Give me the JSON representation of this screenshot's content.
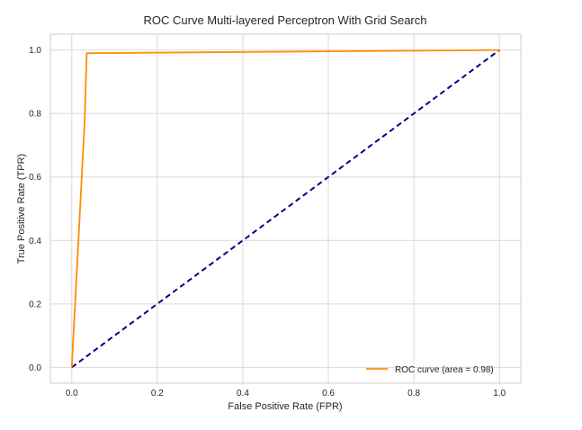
{
  "chart_data": {
    "type": "line",
    "title": "ROC Curve Multi-layered Perceptron With Grid Search",
    "xlabel": "False Positive Rate (FPR)",
    "ylabel": "True Positive Rate (TPR)",
    "xlim": [
      -0.05,
      1.05
    ],
    "ylim": [
      -0.05,
      1.05
    ],
    "xticks": [
      0.0,
      0.2,
      0.4,
      0.6,
      0.8,
      1.0
    ],
    "yticks": [
      0.0,
      0.2,
      0.4,
      0.6,
      0.8,
      1.0
    ],
    "xtick_labels": [
      "0.0",
      "0.2",
      "0.4",
      "0.6",
      "0.8",
      "1.0"
    ],
    "ytick_labels": [
      "0.0",
      "0.2",
      "0.4",
      "0.6",
      "0.8",
      "1.0"
    ],
    "grid": true,
    "legend_position": "lower-right",
    "series": [
      {
        "name": "ROC curve (area = 0.98)",
        "color": "#ff8c00",
        "style": "solid",
        "x": [
          0.0,
          0.03,
          0.035,
          1.0
        ],
        "y": [
          0.0,
          0.77,
          0.99,
          1.0
        ]
      },
      {
        "color": "#000080",
        "style": "dashed",
        "x": [
          0.0,
          1.0
        ],
        "y": [
          0.0,
          1.0
        ]
      }
    ]
  }
}
